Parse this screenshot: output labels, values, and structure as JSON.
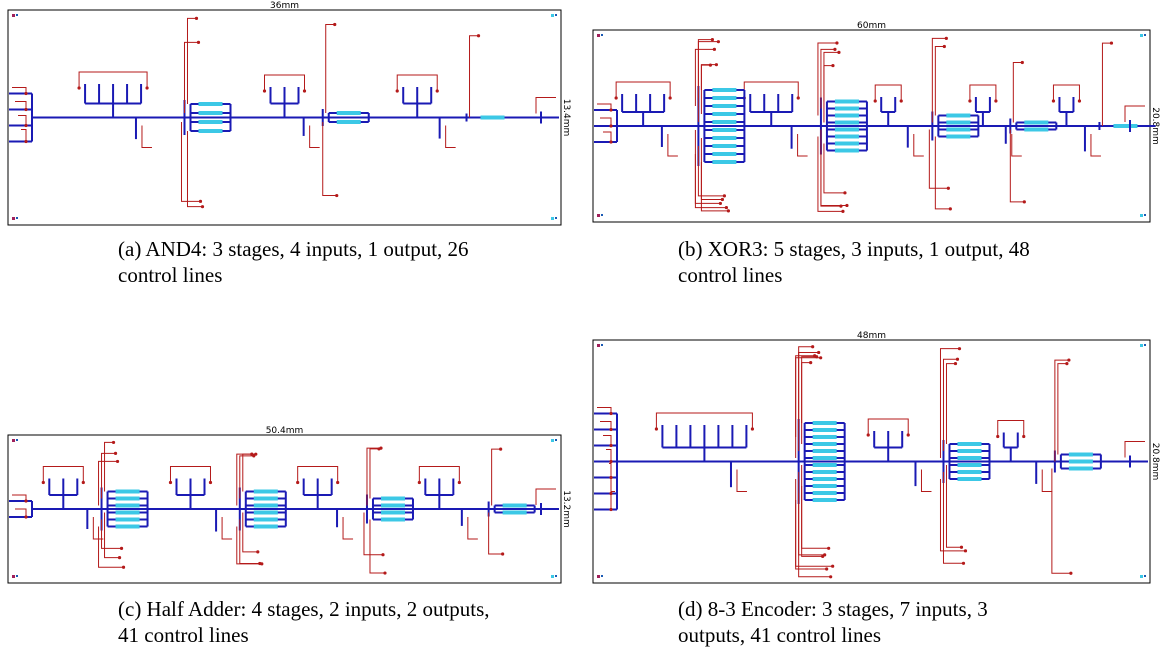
{
  "panels": [
    {
      "width_label": "36mm",
      "height_label": "13.4mm",
      "caption": "(a) AND4: 3 stages, 4 inputs, 1 output, 26 control lines"
    },
    {
      "width_label": "60mm",
      "height_label": "20.8mm",
      "caption": "(b) XOR3: 5 stages, 3 inputs, 1 output, 48 control lines"
    },
    {
      "width_label": "50.4mm",
      "height_label": "13.2mm",
      "caption": "(c) Half Adder: 4 stages, 2 inputs, 2 outputs, 41 control lines"
    },
    {
      "width_label": "48mm",
      "height_label": "20.8mm",
      "caption": "(d) 8-3 Encoder: 3 stages, 7 inputs, 3 outputs, 41 control lines"
    }
  ]
}
